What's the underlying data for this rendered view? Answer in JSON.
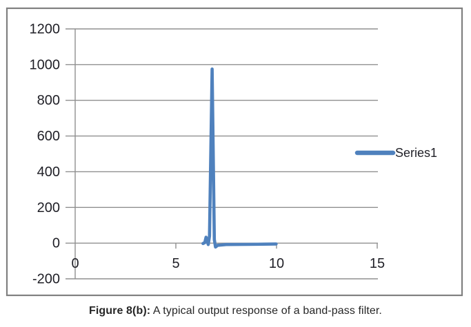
{
  "caption": {
    "prefix": "Figure 8(b):",
    "text": " A typical output response of a band-pass filter."
  },
  "chart_data": {
    "type": "line",
    "title": "",
    "xlabel": "",
    "ylabel": "",
    "xlim": [
      0,
      15
    ],
    "ylim": [
      -200,
      1200
    ],
    "x_ticks": [
      0,
      5,
      10,
      15
    ],
    "y_ticks": [
      1200,
      1000,
      800,
      600,
      400,
      200,
      0,
      -200
    ],
    "grid": "horizontal-only",
    "legend": {
      "position": "middle-right",
      "entries": [
        "Series1"
      ]
    },
    "series": [
      {
        "name": "Series1",
        "color": "#4F81BD",
        "points": [
          [
            6.35,
            -2
          ],
          [
            6.44,
            3
          ],
          [
            6.5,
            33
          ],
          [
            6.56,
            10
          ],
          [
            6.61,
            -8
          ],
          [
            6.67,
            40
          ],
          [
            6.8,
            975
          ],
          [
            6.91,
            20
          ],
          [
            6.97,
            -22
          ],
          [
            7.08,
            -12
          ],
          [
            7.5,
            -8
          ],
          [
            8.5,
            -7
          ],
          [
            9.98,
            -5
          ]
        ],
        "peak_description": "sharp resonance spike near x=6.8 reaching about 975; flat near 0 from x=6.35 to 10 elsewhere"
      }
    ],
    "colors": {
      "series": "#4F81BD",
      "gridline": "#8f8f8f",
      "axis": "#8f8f8f",
      "frame_border": "#808080",
      "tick_label": "#1f1f26",
      "legend_text": "#1f1f26"
    }
  }
}
